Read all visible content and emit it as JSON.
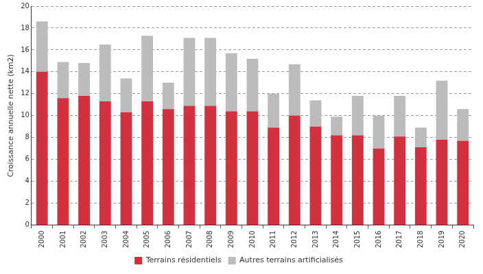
{
  "chart_data": {
    "type": "bar",
    "y_label": "Croissance annuelle nette (km2)",
    "categories": [
      "2000",
      "2001",
      "2002",
      "2003",
      "2004",
      "2005",
      "2006",
      "2007",
      "2008",
      "2009",
      "2010",
      "2011",
      "2012",
      "2013",
      "2014",
      "2015",
      "2016",
      "2017",
      "2018",
      "2019",
      "2020"
    ],
    "series": [
      {
        "name": "Terrains résidentiels",
        "color": "#d2323f",
        "values": [
          14.0,
          11.6,
          11.8,
          11.3,
          10.3,
          11.3,
          10.6,
          10.9,
          10.9,
          10.4,
          10.4,
          8.9,
          10.0,
          9.0,
          8.2,
          8.2,
          7.0,
          8.1,
          7.1,
          7.8,
          7.7
        ]
      },
      {
        "name": "Autres terrains artificialisés",
        "color": "#bcbcbc",
        "values": [
          4.6,
          3.3,
          3.0,
          5.2,
          3.1,
          6.0,
          2.4,
          6.2,
          6.2,
          5.3,
          4.8,
          3.1,
          4.7,
          2.4,
          1.7,
          3.6,
          3.0,
          3.7,
          1.8,
          5.4,
          2.9
        ]
      }
    ],
    "ylim": [
      0,
      20
    ],
    "yticks": [
      0,
      2,
      4,
      6,
      8,
      10,
      12,
      14,
      16,
      18,
      20
    ],
    "stacked": true,
    "grid": true,
    "legend": "bottom"
  }
}
